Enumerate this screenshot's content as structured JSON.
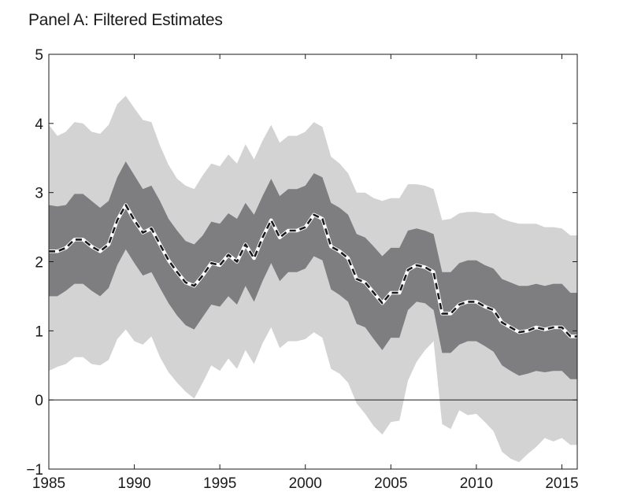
{
  "title": "Panel A: Filtered Estimates",
  "chart_data": {
    "type": "area",
    "title": "Panel A: Filtered Estimates",
    "xlabel": "",
    "ylabel": "",
    "xlim": [
      1985,
      2015.9
    ],
    "ylim": [
      -1,
      5
    ],
    "x_ticks": [
      1985,
      1990,
      1995,
      2000,
      2005,
      2010,
      2015
    ],
    "y_ticks": [
      -1,
      0,
      1,
      2,
      3,
      4,
      5
    ],
    "x_tick_labels": [
      "1985",
      "1990",
      "1995",
      "2000",
      "2005",
      "2010",
      "2015"
    ],
    "y_tick_labels": [
      "−1",
      "0",
      "1",
      "2",
      "3",
      "4",
      "5"
    ],
    "grid": false,
    "zero_line": true,
    "colors": {
      "outer_band": "#d3d3d3",
      "inner_band": "#7e7e80",
      "estimate_line": "#1a1a1a",
      "estimate_halo": "#ffffff"
    },
    "x": [
      1985.0,
      1985.5,
      1986.0,
      1986.5,
      1987.0,
      1987.5,
      1988.0,
      1988.5,
      1989.0,
      1989.5,
      1990.0,
      1990.5,
      1991.0,
      1991.5,
      1992.0,
      1992.5,
      1993.0,
      1993.5,
      1994.0,
      1994.5,
      1995.0,
      1995.5,
      1996.0,
      1996.5,
      1997.0,
      1997.5,
      1998.0,
      1998.5,
      1999.0,
      1999.5,
      2000.0,
      2000.5,
      2001.0,
      2001.5,
      2002.0,
      2002.5,
      2003.0,
      2003.5,
      2004.0,
      2004.5,
      2005.0,
      2005.5,
      2006.0,
      2006.5,
      2007.0,
      2007.5,
      2008.0,
      2008.5,
      2009.0,
      2009.5,
      2010.0,
      2010.5,
      2011.0,
      2011.5,
      2012.0,
      2012.5,
      2013.0,
      2013.5,
      2014.0,
      2014.5,
      2015.0,
      2015.5,
      2015.9
    ],
    "series": [
      {
        "role": "estimate",
        "values": [
          2.15,
          2.15,
          2.2,
          2.32,
          2.32,
          2.22,
          2.15,
          2.25,
          2.6,
          2.82,
          2.6,
          2.42,
          2.48,
          2.25,
          2.02,
          1.85,
          1.7,
          1.65,
          1.8,
          1.98,
          1.95,
          2.1,
          2.0,
          2.25,
          2.05,
          2.35,
          2.6,
          2.35,
          2.45,
          2.45,
          2.5,
          2.68,
          2.62,
          2.22,
          2.15,
          2.05,
          1.75,
          1.7,
          1.55,
          1.4,
          1.55,
          1.55,
          1.88,
          1.95,
          1.92,
          1.85,
          1.25,
          1.25,
          1.38,
          1.42,
          1.42,
          1.35,
          1.3,
          1.12,
          1.05,
          0.98,
          1.0,
          1.05,
          1.02,
          1.05,
          1.05,
          0.92,
          0.92
        ]
      },
      {
        "role": "inner_band_upper",
        "values": [
          2.82,
          2.8,
          2.82,
          2.98,
          2.98,
          2.88,
          2.78,
          2.88,
          3.22,
          3.45,
          3.25,
          3.05,
          3.1,
          2.88,
          2.62,
          2.45,
          2.3,
          2.25,
          2.38,
          2.58,
          2.55,
          2.7,
          2.62,
          2.85,
          2.68,
          2.95,
          3.2,
          2.95,
          3.05,
          3.05,
          3.1,
          3.28,
          3.22,
          2.85,
          2.78,
          2.68,
          2.4,
          2.35,
          2.22,
          2.08,
          2.2,
          2.2,
          2.45,
          2.48,
          2.45,
          2.4,
          1.85,
          1.85,
          1.98,
          2.02,
          2.02,
          1.95,
          1.9,
          1.75,
          1.7,
          1.65,
          1.65,
          1.68,
          1.65,
          1.68,
          1.68,
          1.55,
          1.55
        ]
      },
      {
        "role": "inner_band_lower",
        "values": [
          1.5,
          1.5,
          1.58,
          1.68,
          1.68,
          1.58,
          1.5,
          1.62,
          1.95,
          2.18,
          1.98,
          1.8,
          1.85,
          1.62,
          1.4,
          1.22,
          1.08,
          1.02,
          1.2,
          1.38,
          1.35,
          1.5,
          1.38,
          1.65,
          1.42,
          1.72,
          1.98,
          1.72,
          1.85,
          1.85,
          1.9,
          2.08,
          2.02,
          1.6,
          1.52,
          1.42,
          1.1,
          1.05,
          0.88,
          0.72,
          0.9,
          0.9,
          1.3,
          1.42,
          1.4,
          1.3,
          0.68,
          0.68,
          0.8,
          0.85,
          0.85,
          0.78,
          0.7,
          0.5,
          0.42,
          0.35,
          0.38,
          0.42,
          0.4,
          0.42,
          0.42,
          0.3,
          0.3
        ]
      },
      {
        "role": "outer_band_upper",
        "values": [
          3.98,
          3.82,
          3.88,
          4.02,
          4.0,
          3.88,
          3.85,
          3.98,
          4.28,
          4.4,
          4.22,
          4.05,
          4.02,
          3.68,
          3.4,
          3.2,
          3.1,
          3.05,
          3.25,
          3.42,
          3.38,
          3.55,
          3.42,
          3.7,
          3.48,
          3.75,
          3.98,
          3.72,
          3.82,
          3.82,
          3.88,
          4.02,
          3.95,
          3.52,
          3.42,
          3.28,
          3.0,
          3.0,
          2.92,
          2.88,
          2.92,
          2.92,
          3.12,
          3.12,
          3.1,
          3.05,
          2.6,
          2.62,
          2.7,
          2.72,
          2.72,
          2.7,
          2.7,
          2.62,
          2.58,
          2.55,
          2.55,
          2.55,
          2.5,
          2.5,
          2.48,
          2.38,
          2.38
        ]
      },
      {
        "role": "outer_band_lower",
        "values": [
          0.42,
          0.48,
          0.52,
          0.62,
          0.62,
          0.52,
          0.5,
          0.58,
          0.88,
          1.02,
          0.85,
          0.8,
          0.92,
          0.62,
          0.4,
          0.25,
          0.12,
          0.02,
          0.25,
          0.5,
          0.42,
          0.6,
          0.45,
          0.72,
          0.52,
          0.82,
          1.05,
          0.75,
          0.85,
          0.85,
          0.88,
          0.98,
          0.9,
          0.45,
          0.38,
          0.25,
          -0.05,
          -0.2,
          -0.38,
          -0.5,
          -0.32,
          -0.3,
          0.28,
          0.55,
          0.72,
          0.85,
          -0.35,
          -0.42,
          -0.15,
          -0.22,
          -0.2,
          -0.32,
          -0.45,
          -0.75,
          -0.85,
          -0.9,
          -0.78,
          -0.68,
          -0.55,
          -0.6,
          -0.55,
          -0.65,
          -0.65
        ]
      }
    ]
  }
}
